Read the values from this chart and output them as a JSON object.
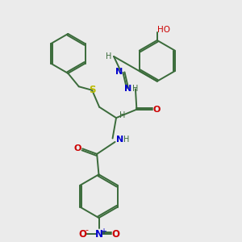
{
  "bg_color": "#ebebeb",
  "colors": {
    "C": "#3a6b3a",
    "N": "#0000cc",
    "O": "#cc0000",
    "S": "#bbbb00",
    "bond": "#3a6b3a"
  },
  "figsize": [
    3.0,
    3.0
  ],
  "dpi": 100,
  "xlim": [
    0,
    10
  ],
  "ylim": [
    0,
    10
  ]
}
